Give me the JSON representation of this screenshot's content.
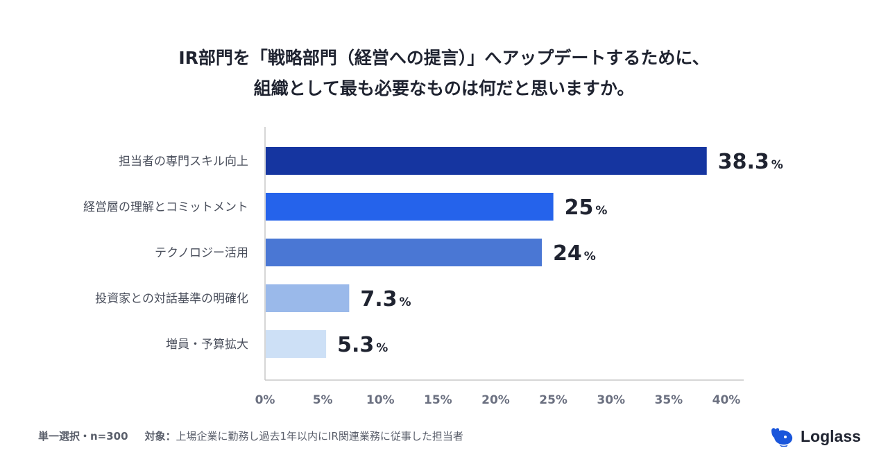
{
  "title": {
    "line1": "IR部門を「戦略部門（経営への提言）」へアップデートするために、",
    "line2": "組織として最も必要なものは何だと思いますか。"
  },
  "chart_data": {
    "type": "bar",
    "orientation": "horizontal",
    "categories": [
      "担当者の専門スキル向上",
      "経営層の理解とコミットメント",
      "テクノロジー活用",
      "投資家との対話基準の明確化",
      "増員・予算拡大"
    ],
    "values": [
      38.3,
      25,
      24,
      7.3,
      5.3
    ],
    "value_labels": [
      "38.3",
      "25",
      "24",
      "7.3",
      "5.3"
    ],
    "value_suffix": "%",
    "bar_colors": [
      "#1535a0",
      "#2563eb",
      "#4a77d4",
      "#9ab9ea",
      "#cde0f6"
    ],
    "xlim": [
      0,
      40
    ],
    "xticks": [
      "0%",
      "5%",
      "10%",
      "15%",
      "20%",
      "25%",
      "30%",
      "35%",
      "40%"
    ],
    "xtick_values": [
      0,
      5,
      10,
      15,
      20,
      25,
      30,
      35,
      40
    ]
  },
  "footer": {
    "selection": "単一選択・n=300",
    "target_label": "対象：",
    "target_text": "上場企業に勤務し過去1年以内にIR関連業務に従事した担当者"
  },
  "logo": {
    "name": "Loglass",
    "brand_color": "#1a56db"
  }
}
